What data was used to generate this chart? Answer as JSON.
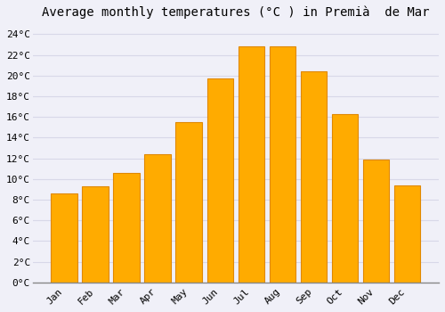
{
  "title": "Average monthly temperatures (°C ) in Premià  de Mar",
  "months": [
    "Jan",
    "Feb",
    "Mar",
    "Apr",
    "May",
    "Jun",
    "Jul",
    "Aug",
    "Sep",
    "Oct",
    "Nov",
    "Dec"
  ],
  "values": [
    8.6,
    9.3,
    10.6,
    12.4,
    15.5,
    19.7,
    22.8,
    22.8,
    20.4,
    16.3,
    11.9,
    9.4
  ],
  "bar_color": "#FFAB00",
  "bar_edge_color": "#E08800",
  "background_color": "#F0F0F8",
  "plot_bg_color": "#F0F0F8",
  "grid_color": "#D8D8E8",
  "title_fontsize": 10,
  "tick_fontsize": 8,
  "ylim": [
    0,
    25
  ],
  "yticks": [
    0,
    2,
    4,
    6,
    8,
    10,
    12,
    14,
    16,
    18,
    20,
    22,
    24
  ]
}
